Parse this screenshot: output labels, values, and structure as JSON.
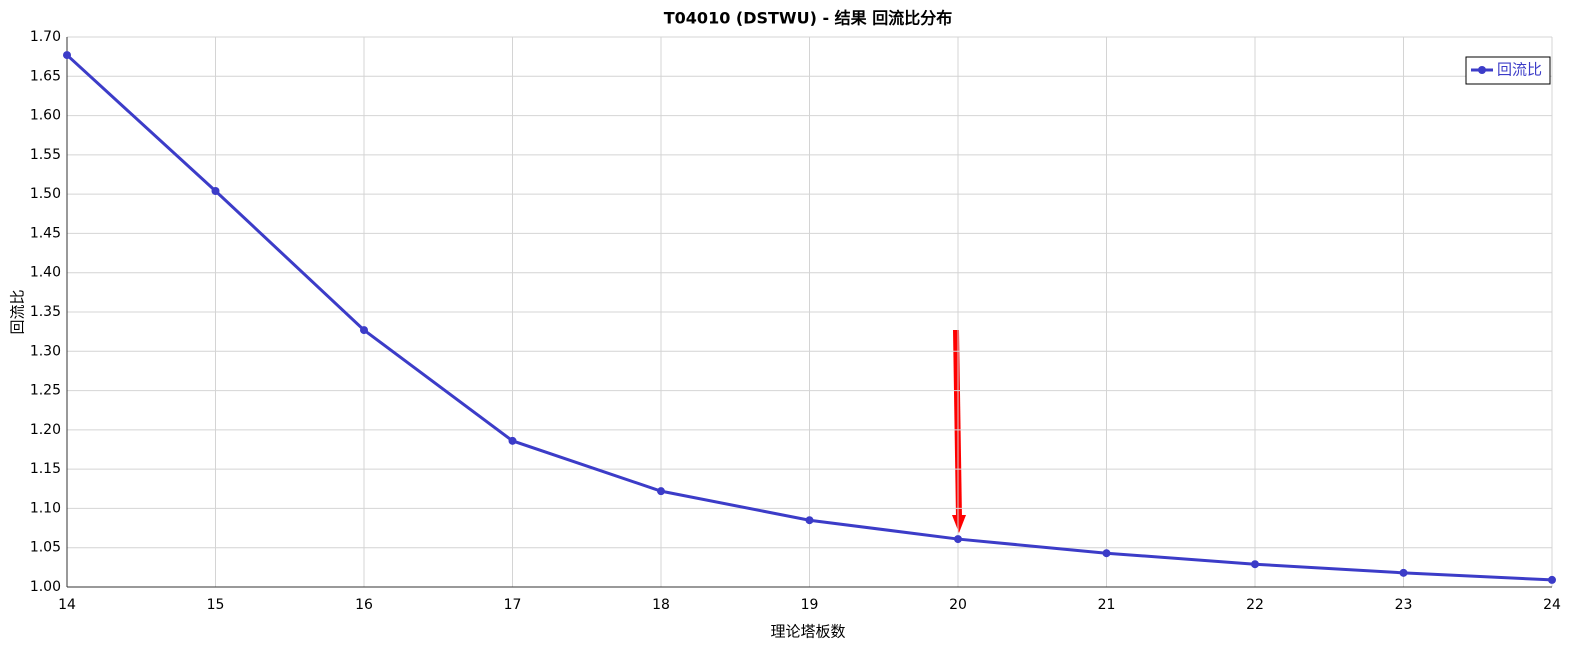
{
  "chart_data": {
    "type": "line",
    "title": "T04010 (DSTWU) - 结果 回流比分布",
    "x_label": "理论塔板数",
    "y_label": "回流比",
    "x": [
      14,
      15,
      16,
      17,
      18,
      19,
      20,
      21,
      22,
      23,
      24
    ],
    "series": [
      {
        "name": "回流比",
        "color": "#3c3cc8",
        "values": [
          1.677,
          1.504,
          1.327,
          1.186,
          1.122,
          1.085,
          1.061,
          1.043,
          1.029,
          1.018,
          1.009
        ]
      }
    ],
    "xlim": [
      14,
      24
    ],
    "xticks": [
      14,
      15,
      16,
      17,
      18,
      19,
      20,
      21,
      22,
      23,
      24
    ],
    "ylim": [
      1.0,
      1.7
    ],
    "yticks": [
      {
        "value": 1.0,
        "label": "1.00"
      },
      {
        "value": 1.05,
        "label": "1.05"
      },
      {
        "value": 1.1,
        "label": "1.10"
      },
      {
        "value": 1.15,
        "label": "1.15"
      },
      {
        "value": 1.2,
        "label": "1.20"
      },
      {
        "value": 1.25,
        "label": "1.25"
      },
      {
        "value": 1.3,
        "label": "1.30"
      },
      {
        "value": 1.35,
        "label": "1.35"
      },
      {
        "value": 1.4,
        "label": "1.40"
      },
      {
        "value": 1.45,
        "label": "1.45"
      },
      {
        "value": 1.5,
        "label": "1.50"
      },
      {
        "value": 1.55,
        "label": "1.55"
      },
      {
        "value": 1.6,
        "label": "1.60"
      },
      {
        "value": 1.65,
        "label": "1.65"
      },
      {
        "value": 1.7,
        "label": "1.70"
      }
    ],
    "grid": true,
    "legend": "top-right"
  }
}
